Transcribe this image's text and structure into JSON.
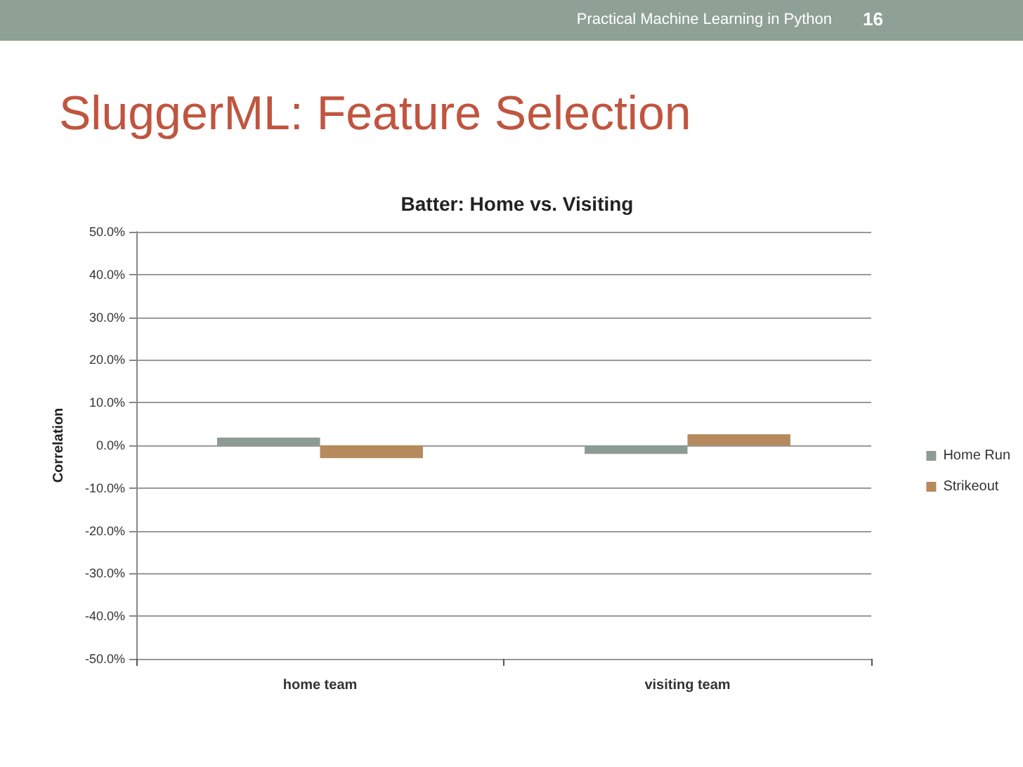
{
  "chart_data": {
    "type": "bar",
    "title": "SluggerML: Feature Selection",
    "subtitle": "Batter: Home vs. Visiting",
    "ylabel": "Correlation",
    "annotations": [
      "Practical Machine Learning in Python",
      "16"
    ],
    "categories": [
      "home team",
      "visiting team"
    ],
    "series": [
      {
        "name": "Home Run",
        "color": "#8c9c94",
        "values": [
          1.8,
          -2.0
        ]
      },
      {
        "name": "Strikeout",
        "color": "#b68a5c",
        "values": [
          -3.0,
          2.6
        ]
      }
    ],
    "ylim": [
      -50,
      50
    ],
    "yticks": [
      {
        "value": -50,
        "label": "-50.0%"
      },
      {
        "value": -40,
        "label": "-40.0%"
      },
      {
        "value": -30,
        "label": "-30.0%"
      },
      {
        "value": -20,
        "label": "-20.0%"
      },
      {
        "value": -10,
        "label": "-10.0%"
      },
      {
        "value": 0,
        "label": "0.0%"
      },
      {
        "value": 10,
        "label": "10.0%"
      },
      {
        "value": 20,
        "label": "20.0%"
      },
      {
        "value": 30,
        "label": "30.0%"
      },
      {
        "value": 40,
        "label": "40.0%"
      },
      {
        "value": 50,
        "label": "50.0%"
      }
    ],
    "grid": "y",
    "legend": "right"
  }
}
